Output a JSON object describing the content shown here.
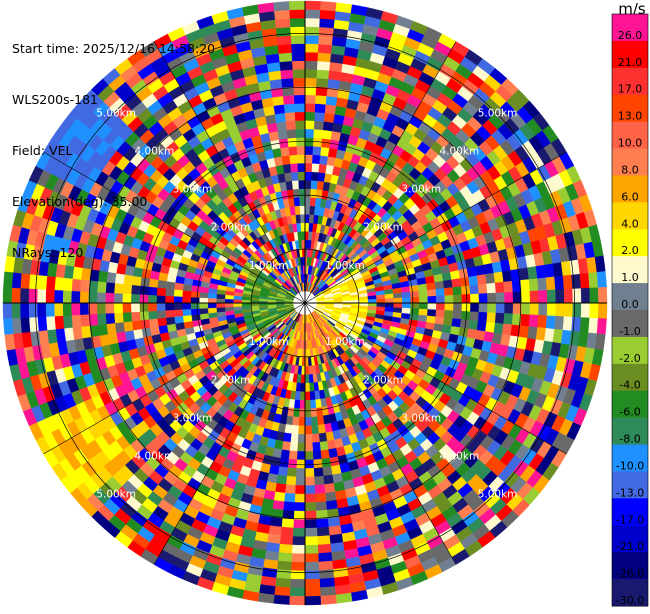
{
  "info": {
    "start_time": "Start time: 2025/12/16 14:58:20",
    "station": "WLS200s-181",
    "field": "Field: VEL",
    "elevation": "Elevation(deg): 35.00",
    "nrays": "NRays: 120"
  },
  "ppi": {
    "n_rays": 120,
    "ring_labels": [
      "1.00km",
      "2.00km",
      "3.00km",
      "4.00km",
      "5.00km"
    ],
    "max_range_km": 5.6
  },
  "colorbar": {
    "unit": "m/s",
    "levels": [
      {
        "label": "26.0",
        "color": "#ff1493"
      },
      {
        "label": "21.0",
        "color": "#ff0000"
      },
      {
        "label": "17.0",
        "color": "#ff3030"
      },
      {
        "label": "13.0",
        "color": "#ff4500"
      },
      {
        "label": "10.0",
        "color": "#ff6347"
      },
      {
        "label": "8.0",
        "color": "#ff7f50"
      },
      {
        "label": "6.0",
        "color": "#ffa500"
      },
      {
        "label": "4.0",
        "color": "#ffd700"
      },
      {
        "label": "2.0",
        "color": "#ffff00"
      },
      {
        "label": "1.0",
        "color": "#fffacd"
      },
      {
        "label": "0.0",
        "color": "#708090"
      },
      {
        "label": "-1.0",
        "color": "#696969"
      },
      {
        "label": "-2.0",
        "color": "#9acd32"
      },
      {
        "label": "-4.0",
        "color": "#6b8e23"
      },
      {
        "label": "-6.0",
        "color": "#228b22"
      },
      {
        "label": "-8.0",
        "color": "#2e8b57"
      },
      {
        "label": "-10.0",
        "color": "#1e90ff"
      },
      {
        "label": "-13.0",
        "color": "#4169e1"
      },
      {
        "label": "-17.0",
        "color": "#0000ff"
      },
      {
        "label": "-21.0",
        "color": "#0000cd"
      },
      {
        "label": "-26.0",
        "color": "#000080"
      },
      {
        "label": "-30.0",
        "color": "#191970"
      }
    ]
  }
}
